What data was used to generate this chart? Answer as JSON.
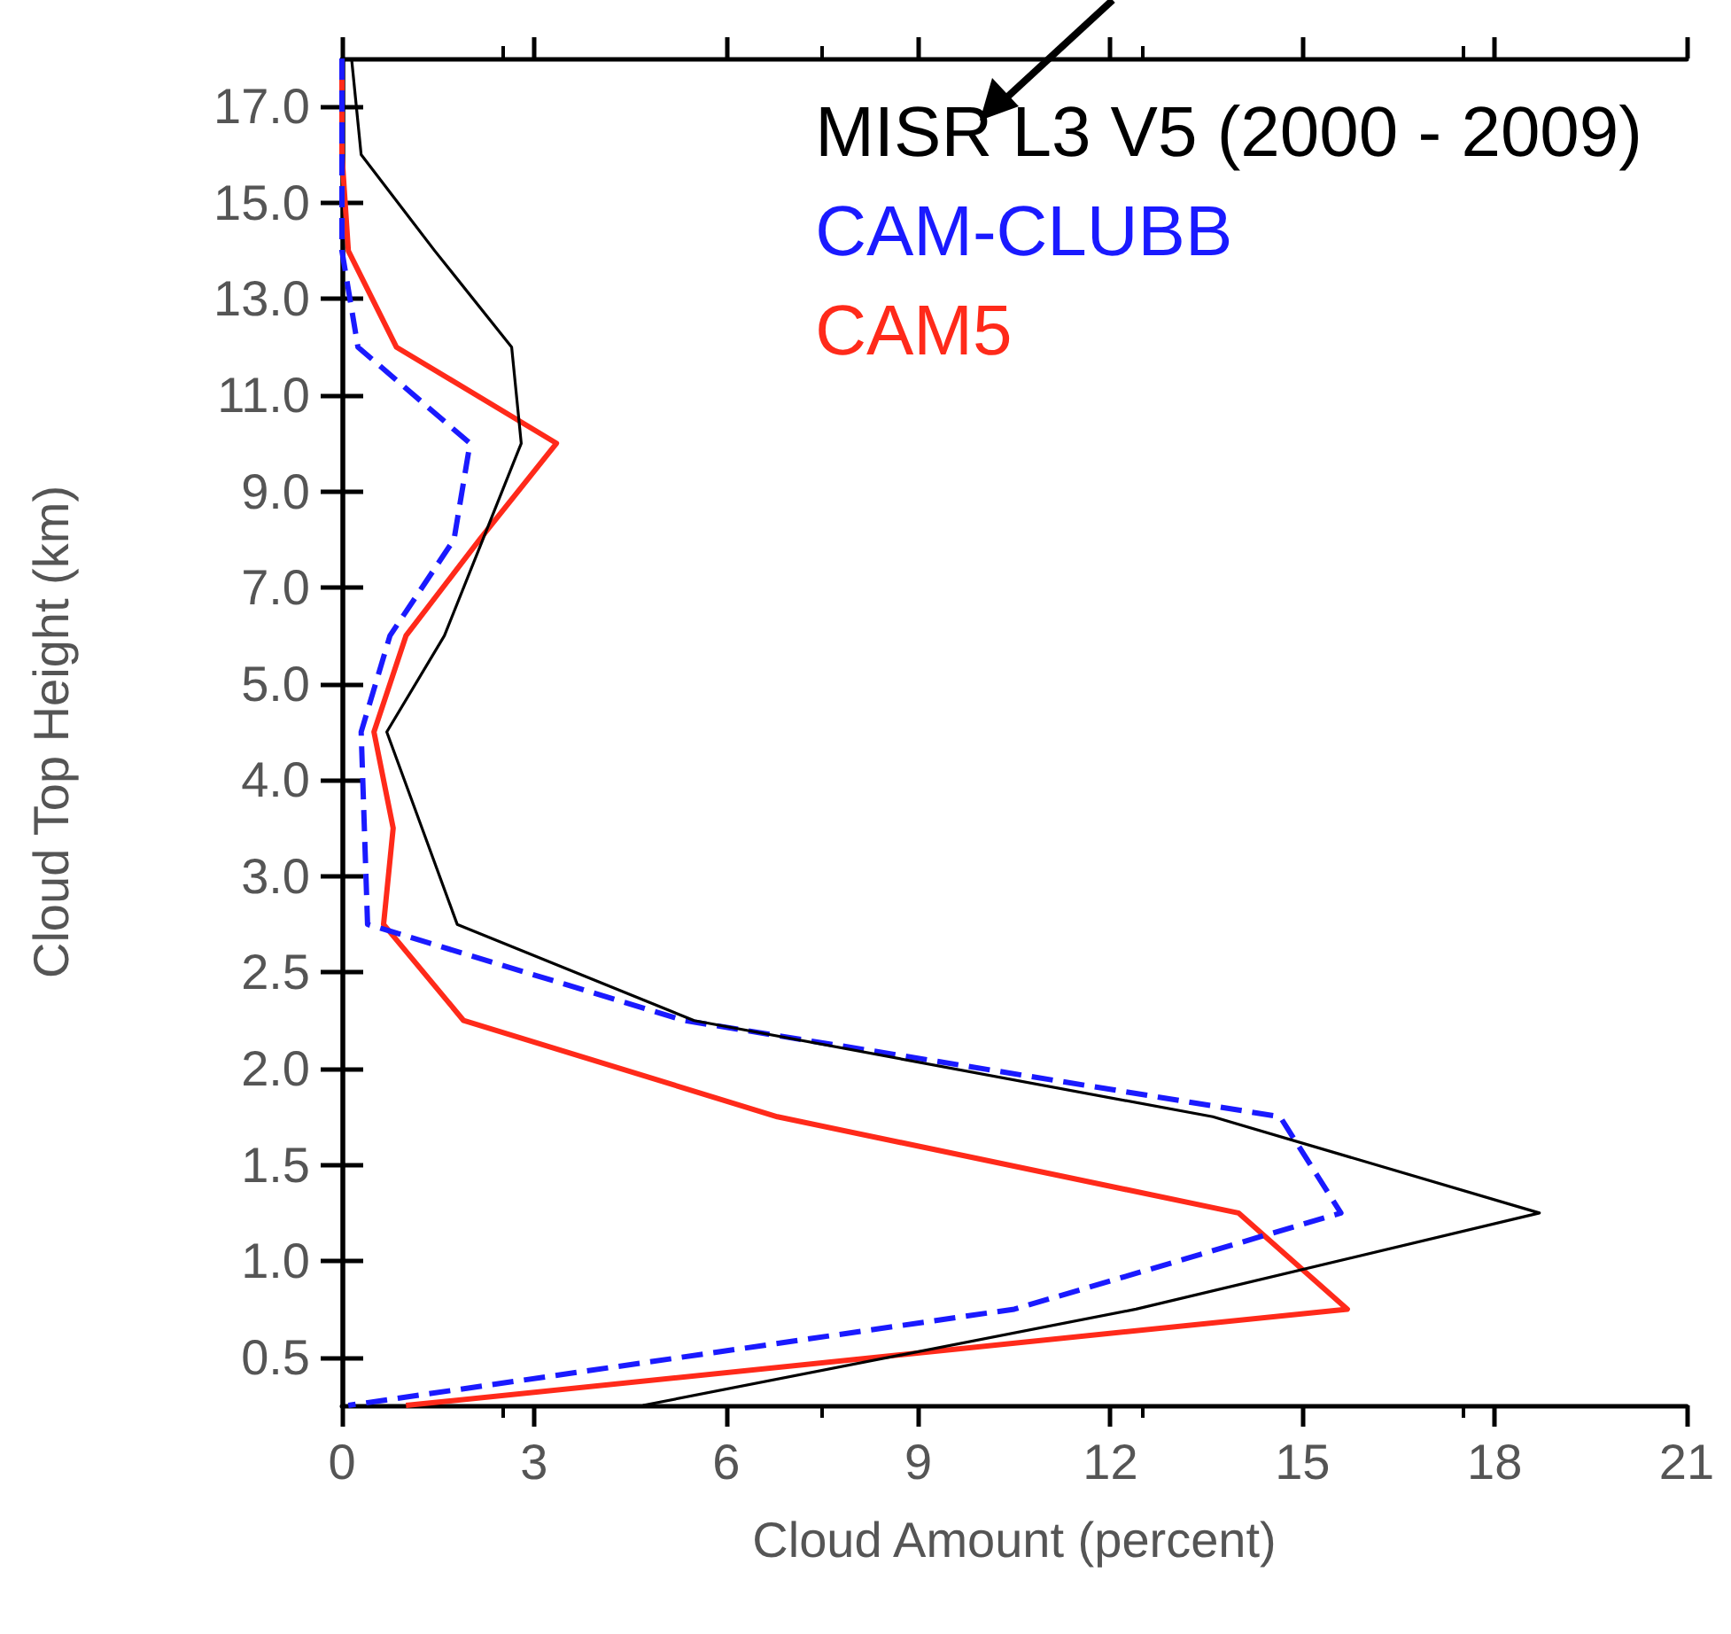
{
  "chart_data": {
    "type": "line",
    "orientation": "horizontal",
    "xlabel": "Cloud Amount (percent)",
    "ylabel": "Cloud Top Height (km)",
    "xlim": [
      0,
      21
    ],
    "xticks": [
      0,
      3,
      6,
      9,
      12,
      15,
      18,
      21
    ],
    "categories": [
      null,
      "17.0",
      null,
      "15.0",
      null,
      "13.0",
      null,
      "11.0",
      null,
      "9.0",
      null,
      "7.0",
      null,
      "5.0",
      null,
      "4.0",
      null,
      "3.0",
      null,
      "2.5",
      null,
      "2.0",
      null,
      "1.5",
      null,
      "1.0",
      null,
      "0.5",
      null
    ],
    "grid": false,
    "legend": "top right",
    "marker": "none",
    "series": [
      {
        "name": "MISR L3 V5 (2000 - 2009)",
        "color": "#000000",
        "line_style": "solid",
        "values": [
          0.15,
          null,
          0.3,
          null,
          1.45,
          null,
          2.65,
          null,
          2.8,
          null,
          2.2,
          null,
          1.6,
          null,
          0.7,
          null,
          1.25,
          null,
          1.8,
          null,
          5.5,
          null,
          13.6,
          null,
          18.7,
          null,
          12.4,
          null,
          4.7
        ]
      },
      {
        "name": "CAM-CLUBB",
        "color": "#1a1aff",
        "line_style": "dashed",
        "values": [
          0.0,
          null,
          0.0,
          null,
          0.0,
          null,
          0.25,
          null,
          2.0,
          null,
          1.75,
          null,
          0.75,
          null,
          0.3,
          null,
          0.35,
          null,
          0.4,
          null,
          5.35,
          null,
          14.65,
          null,
          15.6,
          null,
          10.5,
          null,
          0.1
        ]
      },
      {
        "name": "CAM5",
        "color": "#ff2a1a",
        "line_style": "solid",
        "values": [
          0.0,
          null,
          0.0,
          null,
          0.1,
          null,
          0.85,
          null,
          3.35,
          null,
          2.15,
          null,
          1.0,
          null,
          0.5,
          null,
          0.8,
          null,
          0.65,
          null,
          1.9,
          null,
          6.8,
          null,
          14.0,
          null,
          15.7,
          null,
          1.0
        ]
      }
    ]
  }
}
